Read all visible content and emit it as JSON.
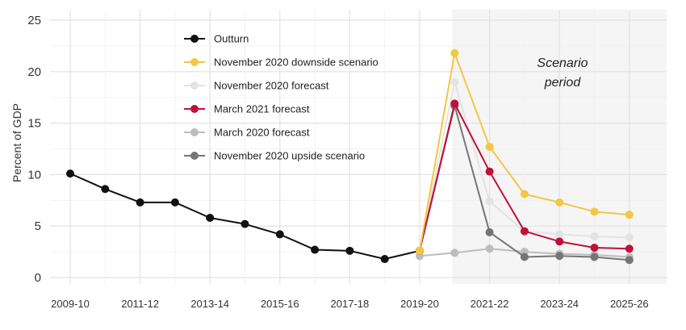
{
  "chart_data": {
    "type": "line",
    "title": "",
    "xlabel": "",
    "ylabel": "Percent of GDP",
    "ylim": [
      0,
      25
    ],
    "yticks": [
      0,
      5,
      10,
      15,
      20,
      25
    ],
    "grid": true,
    "legend_position": "top-left",
    "categories": [
      "2009-10",
      "2010-11",
      "2011-12",
      "2012-13",
      "2013-14",
      "2014-15",
      "2015-16",
      "2016-17",
      "2017-18",
      "2018-19",
      "2019-20",
      "2020-21",
      "2021-22",
      "2022-23",
      "2023-24",
      "2024-25",
      "2025-26"
    ],
    "xtick_labels": [
      "2009-10",
      "2011-12",
      "2013-14",
      "2015-16",
      "2017-18",
      "2019-20",
      "2021-22",
      "2023-24",
      "2025-26"
    ],
    "shaded_region": {
      "from": "2020-21",
      "to": "2025-26",
      "label_line1": "Scenario",
      "label_line2": "period",
      "color": "#f5f5f5"
    },
    "series": [
      {
        "name": "Outturn",
        "color": "#111111",
        "x": [
          "2009-10",
          "2010-11",
          "2011-12",
          "2012-13",
          "2013-14",
          "2014-15",
          "2015-16",
          "2016-17",
          "2017-18",
          "2018-19",
          "2019-20"
        ],
        "values": [
          10.1,
          8.6,
          7.3,
          7.3,
          5.8,
          5.2,
          4.2,
          2.7,
          2.6,
          1.8,
          2.6
        ]
      },
      {
        "name": "March 2020 forecast",
        "color": "#bdbdbd",
        "x": [
          "2019-20",
          "2020-21",
          "2021-22",
          "2022-23",
          "2023-24",
          "2024-25",
          "2025-26"
        ],
        "values": [
          2.1,
          2.4,
          2.8,
          2.5,
          2.3,
          2.2,
          2.0
        ]
      },
      {
        "name": "November 2020 forecast",
        "color": "#e3e3e3",
        "x": [
          "2019-20",
          "2020-21",
          "2021-22",
          "2022-23",
          "2023-24",
          "2024-25",
          "2025-26"
        ],
        "values": [
          2.6,
          19.0,
          7.4,
          4.5,
          4.2,
          4.0,
          3.9
        ]
      },
      {
        "name": "November 2020 upside scenario",
        "color": "#757575",
        "x": [
          "2019-20",
          "2020-21",
          "2021-22",
          "2022-23",
          "2023-24",
          "2024-25",
          "2025-26"
        ],
        "values": [
          2.6,
          16.7,
          4.4,
          2.0,
          2.1,
          2.0,
          1.7
        ]
      },
      {
        "name": "March 2021 forecast",
        "color": "#c0103a",
        "x": [
          "2019-20",
          "2020-21",
          "2021-22",
          "2022-23",
          "2023-24",
          "2024-25",
          "2025-26"
        ],
        "values": [
          2.6,
          16.9,
          10.3,
          4.5,
          3.5,
          2.9,
          2.8
        ]
      },
      {
        "name": "November 2020 downside scenario",
        "color": "#f2c744",
        "x": [
          "2019-20",
          "2020-21",
          "2021-22",
          "2022-23",
          "2023-24",
          "2024-25",
          "2025-26"
        ],
        "values": [
          2.6,
          21.8,
          12.7,
          8.1,
          7.3,
          6.4,
          6.1
        ]
      }
    ],
    "legend_order": [
      "Outturn",
      "November 2020 downside scenario",
      "November 2020 forecast",
      "March 2021 forecast",
      "March 2020 forecast",
      "November 2020 upside scenario"
    ]
  }
}
